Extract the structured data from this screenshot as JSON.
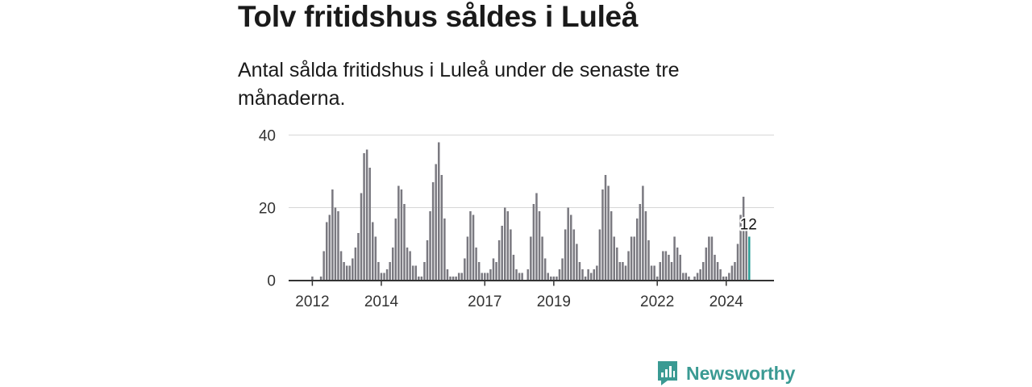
{
  "headline": "Tolv fritidshus såldes i Luleå",
  "subtitle": "Antal sålda fritidshus i Luleå under de senaste tre månaderna.",
  "brand": {
    "name": "Newsworthy"
  },
  "colors": {
    "bar": "#7a7980",
    "highlight": "#2a9d96",
    "grid": "#d6d6d6",
    "axis": "#333333"
  },
  "chart_data": {
    "type": "bar",
    "title": "",
    "xlabel": "",
    "ylabel": "",
    "ylim": [
      0,
      40
    ],
    "yticks": [
      0,
      20,
      40
    ],
    "grid": true,
    "legend": "none",
    "x_tick_labels": [
      "2012",
      "2014",
      "2017",
      "2019",
      "2022",
      "2024"
    ],
    "highlight_label": "12",
    "series": [
      {
        "values": [
          1,
          0,
          0,
          1,
          8,
          16,
          18,
          25,
          20,
          19,
          8,
          5,
          4,
          4,
          6,
          9,
          13,
          24,
          35,
          36,
          31,
          16,
          12,
          5,
          2,
          2,
          3,
          5,
          9,
          17,
          26,
          25,
          21,
          9,
          8,
          4,
          4,
          1,
          1,
          5,
          11,
          19,
          27,
          32,
          38,
          29,
          17,
          3,
          1,
          1,
          1,
          2,
          2,
          6,
          12,
          19,
          18,
          9,
          5,
          2,
          2,
          2,
          3,
          6,
          5,
          11,
          15,
          20,
          19,
          14,
          7,
          3,
          2,
          2,
          0,
          3,
          12,
          21,
          24,
          19,
          12,
          6,
          2,
          1,
          1,
          1,
          3,
          6,
          14,
          20,
          18,
          14,
          10,
          5,
          3,
          1,
          3,
          2,
          3,
          4,
          14,
          25,
          29,
          26,
          19,
          12,
          9,
          5,
          5,
          4,
          8,
          12,
          12,
          17,
          21,
          26,
          19,
          11,
          4,
          4,
          1,
          5,
          8,
          8,
          7,
          5,
          12,
          9,
          7,
          2,
          2,
          1,
          0,
          1,
          2,
          3,
          5,
          9,
          12,
          12,
          7,
          5,
          3,
          1,
          1,
          2,
          4,
          5,
          10,
          18,
          23,
          14,
          12
        ]
      }
    ]
  }
}
